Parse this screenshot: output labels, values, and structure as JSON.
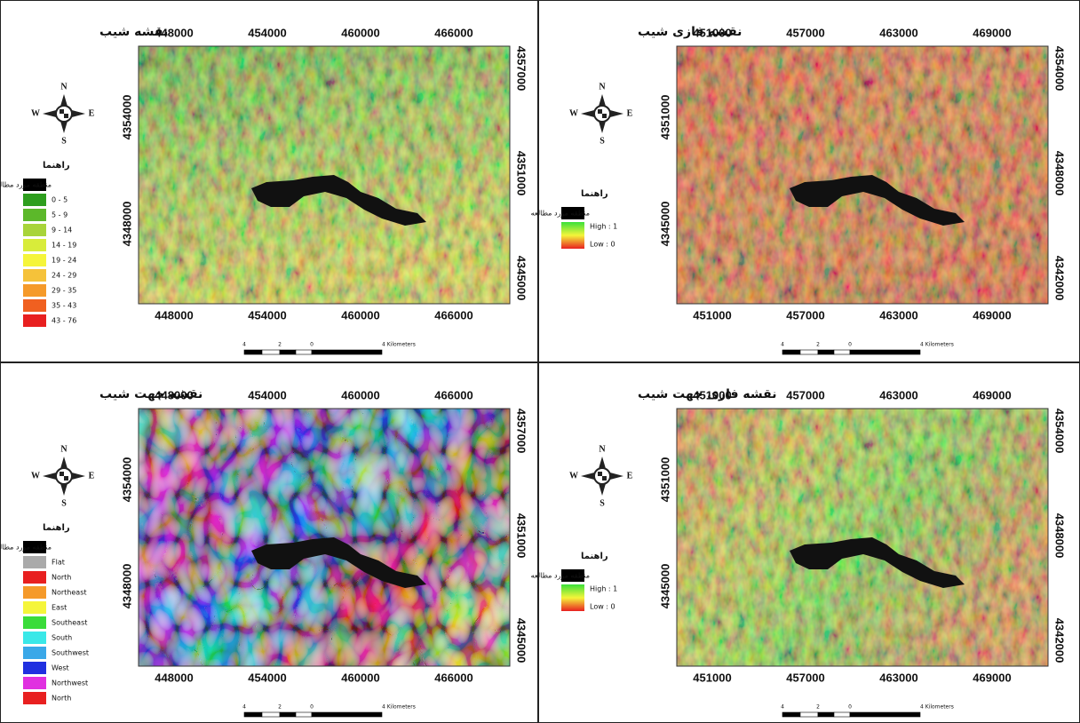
{
  "panels": [
    {
      "kind": "classes",
      "title": "نقشه شیب",
      "compass": {
        "n": "N",
        "s": "S",
        "e": "E",
        "w": "W"
      },
      "legend": {
        "title": "راهنما",
        "items": [
          {
            "label": "منطقه مورد مطالعه",
            "color": "#000000"
          },
          {
            "label": "0 - 5",
            "color": "#2e9e1e"
          },
          {
            "label": "5 - 9",
            "color": "#5cb82a"
          },
          {
            "label": "9 - 14",
            "color": "#a8d43a"
          },
          {
            "label": "14 - 19",
            "color": "#d8ec3a"
          },
          {
            "label": "19 - 24",
            "color": "#f5f53a"
          },
          {
            "label": "24 - 29",
            "color": "#f5c23a"
          },
          {
            "label": "29 - 35",
            "color": "#f59a2a"
          },
          {
            "label": "35 - 43",
            "color": "#f06020"
          },
          {
            "label": "43 - 76",
            "color": "#e82020"
          }
        ]
      },
      "x_ticks": [
        448000,
        454000,
        460000,
        466000
      ],
      "left_ticks": [
        4354000,
        4348000
      ],
      "right_ticks": [
        4357000,
        4351000,
        4345000
      ],
      "scale": [
        "4",
        "2",
        "0",
        "4 Kilometers"
      ]
    },
    {
      "kind": "fuzzy",
      "title": "نقشه فازی شیب",
      "compass": {
        "n": "N",
        "s": "S",
        "e": "E",
        "w": "W"
      },
      "legend": {
        "title": "راهنما",
        "items": [
          {
            "label": "منطقه مورد مطالعه",
            "color": "#000000"
          }
        ],
        "high": "High : 1",
        "low": "Low : 0",
        "colors": [
          "#3ae03a",
          "#f5f53a",
          "#e82020"
        ]
      },
      "x_ticks": [
        451000,
        457000,
        463000,
        469000
      ],
      "left_ticks": [
        4351000,
        4345000
      ],
      "right_ticks": [
        4354000,
        4348000,
        4342000
      ],
      "scale": [
        "4",
        "2",
        "0",
        "4 Kilometers"
      ]
    },
    {
      "kind": "classes",
      "title": "نقشه جهت شیب",
      "compass": {
        "n": "N",
        "s": "S",
        "e": "E",
        "w": "W"
      },
      "legend": {
        "title": "راهنما",
        "items": [
          {
            "label": "منطقه مورد مطالعه",
            "color": "#000000"
          },
          {
            "label": "Flat",
            "color": "#aaaaaa"
          },
          {
            "label": "North",
            "color": "#e82020"
          },
          {
            "label": "Northeast",
            "color": "#f59a2a"
          },
          {
            "label": "East",
            "color": "#f5f53a"
          },
          {
            "label": "Southeast",
            "color": "#3adc3a"
          },
          {
            "label": "South",
            "color": "#3ae8e8"
          },
          {
            "label": "Southwest",
            "color": "#3aa8e8"
          },
          {
            "label": "West",
            "color": "#2030e0"
          },
          {
            "label": "Northwest",
            "color": "#e030e0"
          },
          {
            "label": "North",
            "color": "#e82020"
          }
        ]
      },
      "x_ticks": [
        448000,
        454000,
        460000,
        466000
      ],
      "left_ticks": [
        4354000,
        4348000
      ],
      "right_ticks": [
        4357000,
        4351000,
        4345000
      ],
      "scale": [
        "4",
        "2",
        "0",
        "4 Kilometers"
      ]
    },
    {
      "kind": "fuzzy",
      "title": "نقشه فازی جهت شیب",
      "compass": {
        "n": "N",
        "s": "S",
        "e": "E",
        "w": "W"
      },
      "legend": {
        "title": "راهنما",
        "items": [
          {
            "label": "منطقه مورد مطالعه",
            "color": "#000000"
          }
        ],
        "high": "High : 1",
        "low": "Low : 0",
        "colors": [
          "#3ae03a",
          "#f5f53a",
          "#e82020"
        ]
      },
      "x_ticks": [
        451000,
        457000,
        463000,
        469000
      ],
      "left_ticks": [
        4351000,
        4345000
      ],
      "right_ticks": [
        4354000,
        4348000,
        4342000
      ],
      "scale": [
        "4",
        "2",
        "0",
        "4 Kilometers"
      ]
    }
  ]
}
